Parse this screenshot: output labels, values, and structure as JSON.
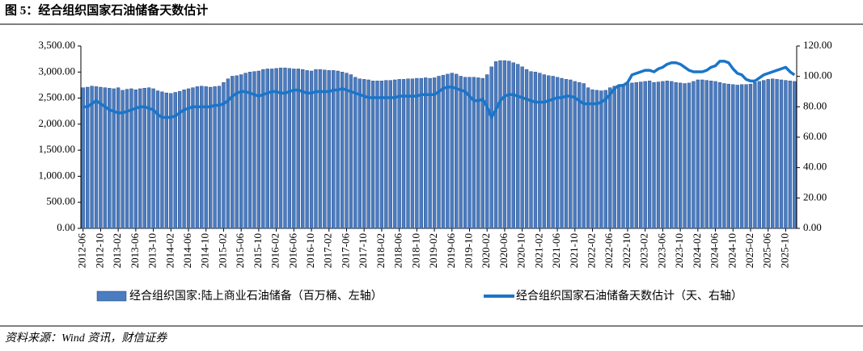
{
  "chart_data": {
    "type": "bar",
    "title": "图 5：经合组织国家石油储备天数估计",
    "source": "资料来源：Wind 资讯，财信证券",
    "categories": [
      "2012-06",
      null,
      null,
      null,
      "2012-10",
      null,
      null,
      null,
      "2013-02",
      null,
      null,
      null,
      "2013-06",
      null,
      null,
      null,
      "2013-10",
      null,
      null,
      null,
      "2014-02",
      null,
      null,
      null,
      "2014-06",
      null,
      null,
      null,
      "2014-10",
      null,
      null,
      null,
      "2015-02",
      null,
      null,
      null,
      "2015-06",
      null,
      null,
      null,
      "2015-10",
      null,
      null,
      null,
      "2016-02",
      null,
      null,
      null,
      "2016-06",
      null,
      null,
      null,
      "2016-10",
      null,
      null,
      null,
      "2017-02",
      null,
      null,
      null,
      "2017-06",
      null,
      null,
      null,
      "2017-10",
      null,
      null,
      null,
      "2018-02",
      null,
      null,
      null,
      "2018-06",
      null,
      null,
      null,
      "2018-10",
      null,
      null,
      null,
      "2019-02",
      null,
      null,
      null,
      "2019-06",
      null,
      null,
      null,
      "2019-10",
      null,
      null,
      null,
      "2020-02",
      null,
      null,
      null,
      "2020-06",
      null,
      null,
      null,
      "2020-10",
      null,
      null,
      null,
      "2021-02",
      null,
      null,
      null,
      "2021-06",
      null,
      null,
      null,
      "2021-10",
      null,
      null,
      null,
      "2022-02",
      null,
      null,
      null,
      "2022-06",
      null,
      null,
      null,
      "2022-10",
      null,
      null,
      null,
      "2023-02",
      null,
      null,
      null,
      "2023-06",
      null,
      null,
      null,
      "2023-10",
      null,
      null,
      null,
      "2024-02",
      null,
      null,
      null,
      "2024-06",
      null,
      null,
      null,
      "2024-10",
      null,
      null,
      null,
      "2025-02",
      null,
      null,
      null,
      "2025-06",
      null,
      null,
      null,
      "2025-10",
      null,
      null
    ],
    "series": [
      {
        "name": "经合组织国家:陆上商业石油储备（百万桶、左轴）",
        "type": "bar",
        "color": "#4a7cc0",
        "axis": "y",
        "values": [
          2700,
          2710,
          2730,
          2720,
          2710,
          2700,
          2690,
          2680,
          2700,
          2650,
          2670,
          2680,
          2660,
          2680,
          2690,
          2700,
          2680,
          2640,
          2620,
          2600,
          2590,
          2610,
          2630,
          2660,
          2680,
          2700,
          2720,
          2730,
          2720,
          2710,
          2720,
          2730,
          2800,
          2870,
          2920,
          2930,
          2950,
          2980,
          3000,
          3010,
          3020,
          3050,
          3060,
          3060,
          3070,
          3080,
          3080,
          3070,
          3060,
          3060,
          3050,
          3030,
          3020,
          3050,
          3050,
          3040,
          3030,
          3030,
          3020,
          3000,
          2980,
          2950,
          2900,
          2870,
          2860,
          2850,
          2830,
          2830,
          2830,
          2840,
          2840,
          2850,
          2860,
          2860,
          2870,
          2870,
          2880,
          2880,
          2890,
          2880,
          2890,
          2920,
          2940,
          2960,
          2980,
          2960,
          2920,
          2900,
          2900,
          2900,
          2890,
          2880,
          2950,
          3100,
          3200,
          3220,
          3220,
          3210,
          3180,
          3150,
          3100,
          3050,
          3010,
          3000,
          2980,
          2950,
          2930,
          2920,
          2900,
          2880,
          2860,
          2850,
          2820,
          2800,
          2780,
          2700,
          2660,
          2650,
          2640,
          2650,
          2700,
          2730,
          2750,
          2770,
          2780,
          2790,
          2800,
          2810,
          2820,
          2830,
          2800,
          2810,
          2820,
          2830,
          2820,
          2800,
          2790,
          2780,
          2790,
          2820,
          2850,
          2850,
          2840,
          2830,
          2820,
          2800,
          2780,
          2770,
          2760,
          2750,
          2760,
          2760,
          2770,
          2800,
          2820,
          2840,
          2860,
          2870,
          2860,
          2850,
          2840,
          2830,
          2820
        ]
      },
      {
        "name": "经合组织国家石油储备天数估计（天、右轴）",
        "type": "line",
        "color": "#1a75c9",
        "axis": "y2",
        "values": [
          80,
          80,
          82,
          84,
          82,
          80,
          78,
          77,
          76,
          76,
          77,
          78,
          79,
          80,
          80,
          79,
          78,
          75,
          73,
          73,
          73,
          74,
          76,
          78,
          79,
          80,
          80,
          80,
          80,
          80,
          81,
          81,
          82,
          84,
          87,
          89,
          90,
          90,
          89,
          88,
          87,
          88,
          89,
          90,
          90,
          89,
          89,
          90,
          91,
          91,
          90,
          89,
          89,
          90,
          90,
          90,
          90,
          91,
          91,
          92,
          91,
          90,
          89,
          88,
          87,
          86,
          86,
          86,
          86,
          86,
          86,
          86,
          87,
          87,
          87,
          87,
          87,
          88,
          88,
          88,
          88,
          90,
          92,
          93,
          93,
          92,
          91,
          90,
          87,
          84,
          84,
          85,
          80,
          73,
          78,
          84,
          87,
          88,
          88,
          87,
          86,
          85,
          84,
          83,
          83,
          83,
          84,
          85,
          86,
          86,
          87,
          87,
          86,
          84,
          82,
          82,
          82,
          82,
          83,
          85,
          88,
          92,
          94,
          94,
          96,
          101,
          102,
          103,
          104,
          104,
          103,
          105,
          106,
          108,
          109,
          109,
          108,
          106,
          104,
          103,
          103,
          103,
          104,
          106,
          107,
          110,
          110,
          109,
          105,
          102,
          101,
          98,
          97,
          97,
          99,
          101,
          102,
          103,
          104,
          105,
          106,
          103,
          101
        ]
      }
    ],
    "ylim": [
      0,
      3500
    ],
    "yticks": [
      {
        "value": 0,
        "label": "0.00"
      },
      {
        "value": 500,
        "label": "500.00"
      },
      {
        "value": 1000,
        "label": "1,000.00"
      },
      {
        "value": 1500,
        "label": "1,500.00"
      },
      {
        "value": 2000,
        "label": "2,000.00"
      },
      {
        "value": 2500,
        "label": "2,500.00"
      },
      {
        "value": 3000,
        "label": "3,000.00"
      },
      {
        "value": 3500,
        "label": "3,500.00"
      }
    ],
    "y2lim": [
      0,
      120
    ],
    "y2ticks": [
      {
        "value": 0,
        "label": "0.00"
      },
      {
        "value": 20,
        "label": "20.00"
      },
      {
        "value": 40,
        "label": "40.00"
      },
      {
        "value": 60,
        "label": "60.00"
      },
      {
        "value": 80,
        "label": "80.00"
      },
      {
        "value": 100,
        "label": "100.00"
      },
      {
        "value": 120,
        "label": "120.00"
      }
    ]
  }
}
